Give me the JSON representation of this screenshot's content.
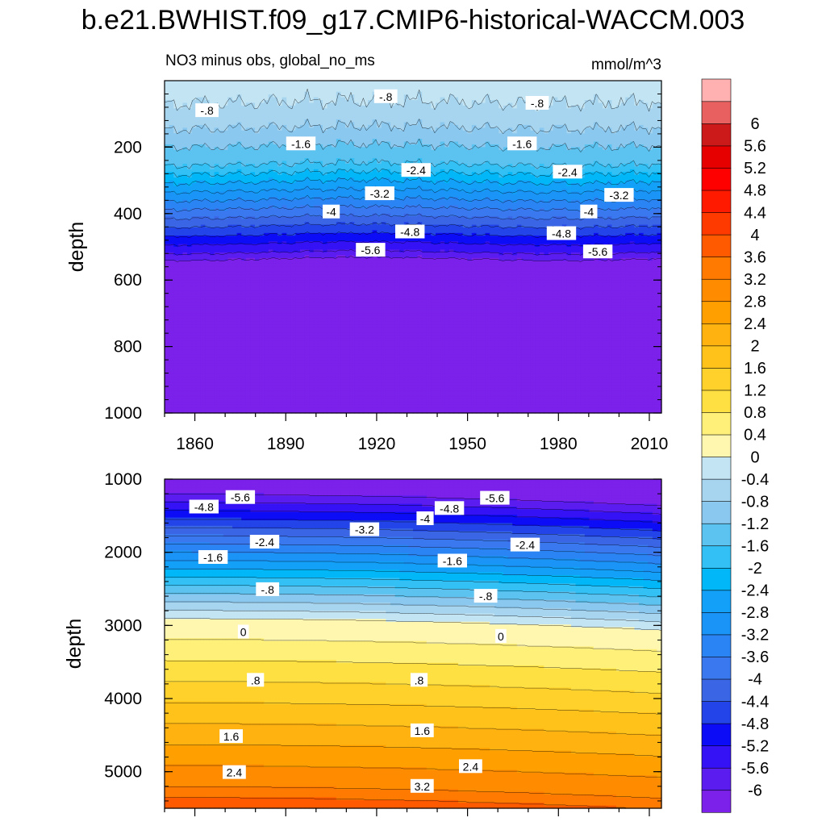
{
  "title": "b.e21.BWHIST.f09_g17.CMIP6-historical-WACCM.003",
  "chart_data": {
    "type": "heatmap",
    "variable_label": "NO3 minus obs, global_no_ms",
    "units": "mmol/m^3",
    "colorbar": {
      "levels": [
        -6,
        -5.6,
        -5.2,
        -4.8,
        -4.4,
        -4,
        -3.6,
        -3.2,
        -2.8,
        -2.4,
        -2,
        -1.6,
        -1.2,
        -0.8,
        -0.4,
        0,
        0.4,
        0.8,
        1.2,
        1.6,
        2,
        2.4,
        2.8,
        3.2,
        3.6,
        4,
        4.4,
        4.8,
        5.2,
        5.6,
        6
      ],
      "tick_labels": [
        "-6",
        "-5.6",
        "-5.2",
        "-4.8",
        "-4.4",
        "-4",
        "-3.6",
        "-3.2",
        "-2.8",
        "-2.4",
        "-2",
        "-1.6",
        "-1.2",
        "-0.8",
        "-0.4",
        "0",
        "0.4",
        "0.8",
        "1.2",
        "1.6",
        "2",
        "2.4",
        "2.8",
        "3.2",
        "3.6",
        "4",
        "4.4",
        "4.8",
        "5.2",
        "5.6",
        "6"
      ],
      "colors": [
        "#7b21ea",
        "#5b1cf0",
        "#3512f5",
        "#0d0cf7",
        "#2244e8",
        "#3a66e6",
        "#3a78f0",
        "#2a84f4",
        "#1a94f6",
        "#12a0f8",
        "#02b7f7",
        "#33c0f5",
        "#5cc2f0",
        "#8bc8ef",
        "#a7d5f0",
        "#c3e4f3",
        "#fff7b0",
        "#fff07a",
        "#ffe042",
        "#ffd12a",
        "#ffc21a",
        "#ffb210",
        "#ffa000",
        "#ff8c00",
        "#ff7a00",
        "#ff5a00",
        "#ff3a00",
        "#ff1a00",
        "#ff0000",
        "#e60000",
        "#cc1a1a",
        "#e86060",
        "#ffb0b0"
      ]
    },
    "panels": [
      {
        "name": "upper",
        "ylabel": "depth",
        "ylim": [
          0,
          1000
        ],
        "y_ticks": [
          200,
          400,
          600,
          800,
          1000
        ],
        "y_tick_labels": [
          "200",
          "400",
          "600",
          "800",
          "1000"
        ],
        "xlim": [
          1850,
          2014
        ],
        "x_ticks": [
          1860,
          1890,
          1920,
          1950,
          1980,
          2010
        ],
        "x_tick_labels": [
          "1860",
          "1890",
          "1920",
          "1950",
          "1980",
          "2010"
        ],
        "contour_labels": [
          {
            "text": "-.8",
            "x": 1864,
            "y": 90
          },
          {
            "text": "-.8",
            "x": 1923,
            "y": 48
          },
          {
            "text": "-.8",
            "x": 1973,
            "y": 68
          },
          {
            "text": "-1.6",
            "x": 1895,
            "y": 190
          },
          {
            "text": "-1.6",
            "x": 1968,
            "y": 190
          },
          {
            "text": "-2.4",
            "x": 1933,
            "y": 270
          },
          {
            "text": "-2.4",
            "x": 1983,
            "y": 275
          },
          {
            "text": "-3.2",
            "x": 1921,
            "y": 340
          },
          {
            "text": "-3.2",
            "x": 2000,
            "y": 345
          },
          {
            "text": "-4",
            "x": 1905,
            "y": 395
          },
          {
            "text": "-4",
            "x": 1990,
            "y": 395
          },
          {
            "text": "-4.8",
            "x": 1931,
            "y": 455
          },
          {
            "text": "-4.8",
            "x": 1981,
            "y": 460
          },
          {
            "text": "-5.6",
            "x": 1918,
            "y": 510
          },
          {
            "text": "-5.6",
            "x": 1993,
            "y": 515
          }
        ]
      },
      {
        "name": "lower",
        "ylabel": "depth",
        "ylim": [
          1000,
          5500
        ],
        "y_ticks": [
          1000,
          2000,
          3000,
          4000,
          5000
        ],
        "y_tick_labels": [
          "1000",
          "2000",
          "3000",
          "4000",
          "5000"
        ],
        "xlim": [
          1850,
          2014
        ],
        "x_ticks": [
          1860,
          1890,
          1920,
          1950,
          1980,
          2010
        ],
        "contour_labels": [
          {
            "text": "-5.6",
            "x": 1875,
            "y": 1250
          },
          {
            "text": "-5.6",
            "x": 1959,
            "y": 1260
          },
          {
            "text": "-4.8",
            "x": 1863,
            "y": 1380
          },
          {
            "text": "-4.8",
            "x": 1944,
            "y": 1400
          },
          {
            "text": "-4",
            "x": 1936,
            "y": 1540
          },
          {
            "text": "-3.2",
            "x": 1916,
            "y": 1690
          },
          {
            "text": "-2.4",
            "x": 1883,
            "y": 1860
          },
          {
            "text": "-2.4",
            "x": 1969,
            "y": 1900
          },
          {
            "text": "-1.6",
            "x": 1866,
            "y": 2070
          },
          {
            "text": "-1.6",
            "x": 1945,
            "y": 2120
          },
          {
            "text": "-.8",
            "x": 1884,
            "y": 2510
          },
          {
            "text": "-.8",
            "x": 1956,
            "y": 2600
          },
          {
            "text": "0",
            "x": 1876,
            "y": 3090
          },
          {
            "text": "0",
            "x": 1961,
            "y": 3150
          },
          {
            "text": ".8",
            "x": 1880,
            "y": 3750
          },
          {
            "text": ".8",
            "x": 1934,
            "y": 3750
          },
          {
            "text": "1.6",
            "x": 1872,
            "y": 4520
          },
          {
            "text": "1.6",
            "x": 1935,
            "y": 4440
          },
          {
            "text": "2.4",
            "x": 1873,
            "y": 5010
          },
          {
            "text": "2.4",
            "x": 1951,
            "y": 4930
          },
          {
            "text": "3.2",
            "x": 1935,
            "y": 5200
          }
        ]
      }
    ]
  }
}
